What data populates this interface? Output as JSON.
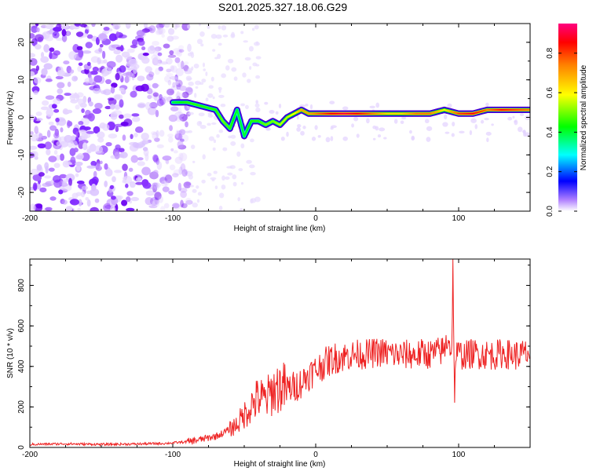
{
  "title": "S201.2025.327.18.06.G29",
  "chart_data": [
    {
      "type": "heatmap",
      "title": "S201.2025.327.18.06.G29",
      "xlabel": "Height of straight line (km)",
      "ylabel": "Frequency (Hz)",
      "xlim": [
        -200,
        150
      ],
      "ylim": [
        -25,
        25
      ],
      "xticks": [
        -200,
        -100,
        0,
        100
      ],
      "yticks": [
        -20,
        -10,
        0,
        10,
        20
      ],
      "colorbar": {
        "label": "Normalized spectral amplitude",
        "range": [
          0,
          0.95
        ],
        "ticks": [
          0.0,
          0.2,
          0.4,
          0.6,
          0.8
        ],
        "colors": [
          "#ffffff",
          "#8000ff",
          "#0000ff",
          "#00ffff",
          "#00ff00",
          "#ffff00",
          "#ff8000",
          "#ff0000",
          "#ff0080"
        ]
      },
      "ridge": {
        "x": [
          -100,
          -90,
          -80,
          -70,
          -65,
          -60,
          -55,
          -50,
          -45,
          -40,
          -35,
          -30,
          -25,
          -20,
          -15,
          -10,
          -5,
          0,
          10,
          20,
          30,
          40,
          50,
          60,
          70,
          80,
          90,
          100,
          110,
          120,
          130,
          140,
          150
        ],
        "y": [
          4,
          4,
          3,
          2,
          -1,
          -3,
          2,
          -5,
          -1,
          -1,
          -2,
          -1,
          -2,
          0,
          1,
          2,
          1,
          1,
          1,
          1,
          1,
          1,
          1,
          1,
          1,
          1,
          2,
          1,
          1,
          2,
          2,
          2,
          2
        ],
        "amplitude": [
          0.4,
          0.45,
          0.45,
          0.45,
          0.5,
          0.45,
          0.4,
          0.4,
          0.45,
          0.45,
          0.5,
          0.5,
          0.55,
          0.55,
          0.6,
          0.7,
          0.7,
          0.75,
          0.85,
          0.9,
          0.85,
          0.75,
          0.65,
          0.65,
          0.75,
          0.75,
          0.6,
          0.8,
          0.85,
          0.75,
          0.85,
          0.8,
          0.75
        ]
      }
    },
    {
      "type": "line",
      "xlabel": "Height of straight line (km)",
      "ylabel": "SNR (10 * v/v)",
      "xlim": [
        -200,
        150
      ],
      "ylim": [
        0,
        930
      ],
      "xticks": [
        -200,
        -100,
        0,
        100
      ],
      "yticks": [
        0,
        200,
        400,
        600,
        800
      ],
      "series": [
        {
          "name": "SNR",
          "color": "#ee2222",
          "x": [
            -200,
            -175,
            -150,
            -125,
            -105,
            -90,
            -80,
            -70,
            -65,
            -60,
            -55,
            -50,
            -45,
            -40,
            -35,
            -30,
            -25,
            -20,
            -15,
            -10,
            -5,
            0,
            5,
            10,
            15,
            20,
            25,
            30,
            35,
            40,
            45,
            50,
            55,
            60,
            65,
            70,
            75,
            80,
            85,
            90,
            93,
            95,
            96,
            97,
            98,
            100,
            105,
            110,
            115,
            120,
            125,
            130,
            135,
            140,
            145,
            150
          ],
          "y": [
            15,
            18,
            15,
            17,
            20,
            28,
            40,
            55,
            70,
            90,
            115,
            160,
            210,
            245,
            235,
            280,
            300,
            290,
            300,
            320,
            360,
            380,
            410,
            430,
            445,
            450,
            455,
            460,
            460,
            465,
            470,
            465,
            460,
            455,
            460,
            455,
            465,
            460,
            470,
            480,
            560,
            430,
            900,
            240,
            460,
            460,
            455,
            465,
            460,
            460,
            455,
            465,
            460,
            455,
            460,
            465
          ]
        }
      ]
    }
  ]
}
